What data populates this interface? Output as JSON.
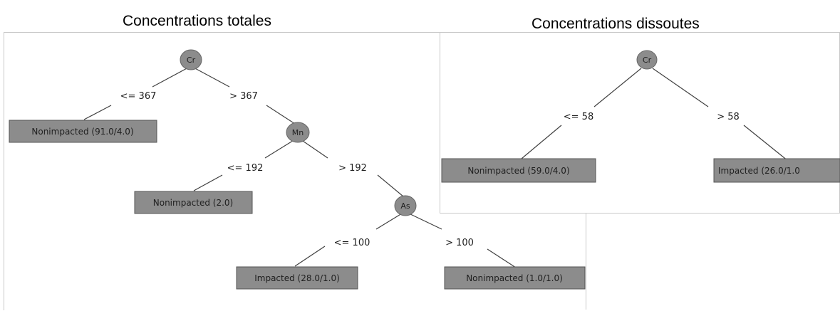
{
  "titles": {
    "left": "Concentrations totales",
    "right": "Concentrations dissoutes"
  },
  "colors": {
    "node_fill": "#8c8c8c",
    "leaf_fill": "#8c8c8c",
    "line": "#404040",
    "text": "#202020",
    "panel_border": "#c8c8c8"
  },
  "left_tree": {
    "nodes": {
      "root": "Cr",
      "node2": "Mn",
      "node3": "As"
    },
    "edges": {
      "root_left": "<= 367",
      "root_right": "> 367",
      "node2_left": "<= 192",
      "node2_right": "> 192",
      "node3_left": "<= 100",
      "node3_right": "> 100"
    },
    "leaves": {
      "leaf1": "Nonimpacted (91.0/4.0)",
      "leaf2": "Nonimpacted (2.0)",
      "leaf3": "Impacted (28.0/1.0)",
      "leaf4": "Nonimpacted (1.0/1.0)"
    }
  },
  "right_tree": {
    "nodes": {
      "root": "Cr"
    },
    "edges": {
      "root_left": "<= 58",
      "root_right": "> 58"
    },
    "leaves": {
      "leaf1": "Nonimpacted (59.0/4.0)",
      "leaf2": "Impacted (26.0/1.0"
    }
  }
}
